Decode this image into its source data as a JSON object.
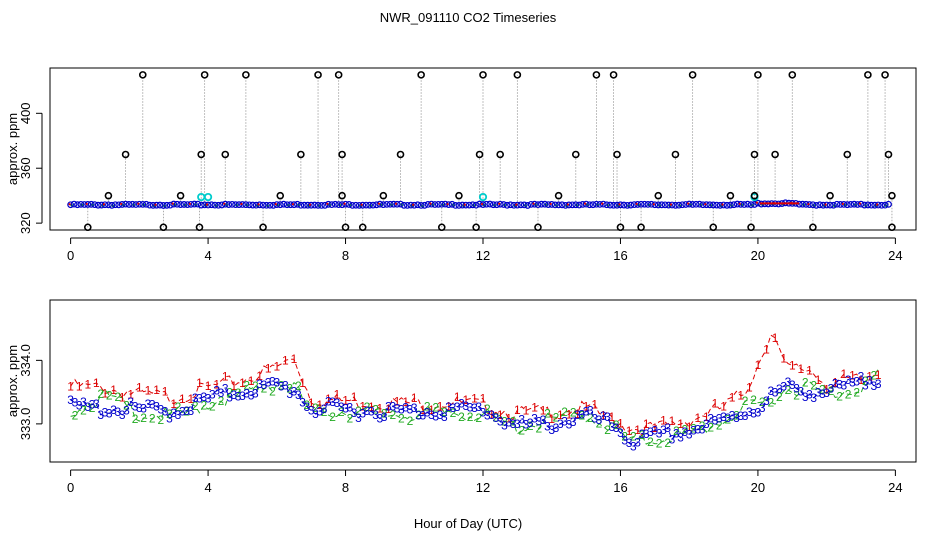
{
  "title": "NWR_091110  CO2 Timeseries",
  "xlabel": "Hour of Day (UTC)",
  "colors": {
    "background": "#ffffff",
    "axis": "#000000",
    "series1": "#dd0000",
    "series2": "#22aa22",
    "series3": "#0000cc",
    "flagged": "#00cccc",
    "outlier": "#000000",
    "connector": "#999999"
  },
  "chart_data": [
    {
      "type": "scatter",
      "panel": "top",
      "title": "NWR_091110  CO2 Timeseries",
      "xlabel": "",
      "ylabel": "approx. ppm",
      "xlim": [
        -0.6,
        24.6
      ],
      "ylim": [
        315,
        433
      ],
      "xticks": [
        0,
        4,
        8,
        12,
        16,
        20,
        24
      ],
      "yticks": [
        320,
        360,
        400
      ],
      "baseline_ppm": 333.4,
      "flagged_points": [
        [
          3.8,
          339
        ],
        [
          4.0,
          339
        ],
        [
          12.0,
          339
        ],
        [
          19.9,
          339
        ]
      ],
      "outliers": [
        [
          0.5,
          317
        ],
        [
          1.1,
          340
        ],
        [
          1.6,
          370
        ],
        [
          2.1,
          428
        ],
        [
          2.7,
          317
        ],
        [
          3.2,
          340
        ],
        [
          3.75,
          317
        ],
        [
          3.8,
          370
        ],
        [
          3.9,
          428
        ],
        [
          4.5,
          370
        ],
        [
          5.1,
          428
        ],
        [
          5.6,
          317
        ],
        [
          6.1,
          340
        ],
        [
          6.7,
          370
        ],
        [
          7.2,
          428
        ],
        [
          7.8,
          428
        ],
        [
          7.9,
          370
        ],
        [
          7.9,
          340
        ],
        [
          8.0,
          317
        ],
        [
          8.5,
          317
        ],
        [
          9.1,
          340
        ],
        [
          9.6,
          370
        ],
        [
          10.2,
          428
        ],
        [
          10.8,
          317
        ],
        [
          11.3,
          340
        ],
        [
          11.8,
          317
        ],
        [
          11.9,
          370
        ],
        [
          12.0,
          428
        ],
        [
          12.5,
          370
        ],
        [
          13.0,
          428
        ],
        [
          13.6,
          317
        ],
        [
          14.2,
          340
        ],
        [
          14.7,
          370
        ],
        [
          15.3,
          428
        ],
        [
          15.8,
          428
        ],
        [
          15.9,
          370
        ],
        [
          16.0,
          317
        ],
        [
          16.6,
          317
        ],
        [
          17.1,
          340
        ],
        [
          17.6,
          370
        ],
        [
          18.1,
          428
        ],
        [
          18.7,
          317
        ],
        [
          19.2,
          340
        ],
        [
          19.8,
          317
        ],
        [
          19.9,
          370
        ],
        [
          19.9,
          340
        ],
        [
          20.0,
          428
        ],
        [
          20.5,
          370
        ],
        [
          21.0,
          428
        ],
        [
          21.6,
          317
        ],
        [
          22.1,
          340
        ],
        [
          22.6,
          370
        ],
        [
          23.2,
          428
        ],
        [
          23.7,
          428
        ],
        [
          23.8,
          370
        ],
        [
          23.9,
          340
        ],
        [
          23.9,
          317
        ]
      ]
    },
    {
      "type": "line",
      "panel": "bottom",
      "xlabel": "Hour of Day (UTC)",
      "ylabel": "approx. ppm",
      "xlim": [
        -0.6,
        24.6
      ],
      "ylim": [
        332.4,
        334.95
      ],
      "xticks": [
        0,
        4,
        8,
        12,
        16,
        20,
        24
      ],
      "yticks": [
        333.0,
        334.0
      ],
      "ytick_labels": [
        "333.0",
        "334.0"
      ],
      "x": [
        0,
        1,
        2,
        3,
        4,
        5,
        6,
        6.5,
        7,
        8,
        9,
        10,
        11,
        12,
        13,
        14,
        15,
        15.9,
        16.3,
        17,
        18,
        19,
        19.6,
        20,
        20.4,
        20.8,
        21.5,
        22,
        23,
        23.6
      ],
      "series": [
        {
          "name": "1",
          "symbol": "1",
          "values": [
            333.65,
            333.62,
            333.52,
            333.48,
            333.62,
            333.75,
            333.95,
            334.1,
            333.45,
            333.42,
            333.4,
            333.38,
            333.4,
            333.35,
            333.22,
            333.25,
            333.3,
            333.1,
            333.0,
            332.98,
            333.12,
            333.32,
            333.55,
            334.0,
            334.55,
            333.92,
            333.92,
            333.7,
            333.75,
            333.92
          ]
        },
        {
          "name": "2",
          "symbol": "2",
          "values": [
            333.28,
            333.5,
            333.22,
            333.18,
            333.38,
            333.55,
            333.7,
            333.65,
            333.25,
            333.26,
            333.22,
            333.2,
            333.25,
            333.2,
            333.0,
            333.12,
            333.2,
            332.98,
            332.75,
            332.82,
            332.9,
            333.12,
            333.3,
            333.35,
            333.45,
            333.6,
            333.65,
            333.5,
            333.65,
            333.85
          ]
        },
        {
          "name": "3",
          "symbol": "3",
          "values": [
            333.32,
            333.3,
            333.28,
            333.25,
            333.45,
            333.58,
            333.65,
            333.6,
            333.3,
            333.28,
            333.26,
            333.25,
            333.28,
            333.28,
            333.02,
            333.06,
            333.18,
            333.0,
            332.78,
            332.85,
            332.95,
            333.1,
            333.25,
            333.32,
            333.5,
            333.62,
            333.58,
            333.55,
            333.7,
            333.82
          ]
        }
      ]
    }
  ]
}
